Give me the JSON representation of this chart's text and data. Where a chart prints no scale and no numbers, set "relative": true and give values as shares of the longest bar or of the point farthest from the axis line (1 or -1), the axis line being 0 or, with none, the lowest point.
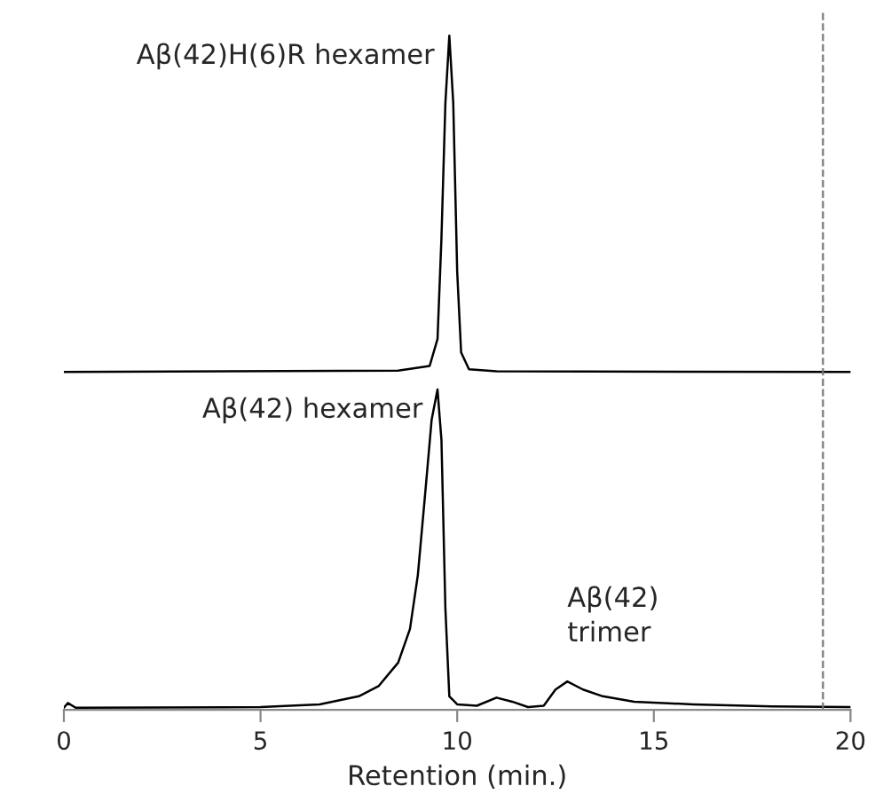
{
  "chart_data": {
    "type": "line",
    "relative": true,
    "xlabel": "Retention (min.)",
    "xlim": [
      0,
      20
    ],
    "xticks": [
      0,
      5,
      10,
      15,
      20
    ],
    "grid": false,
    "legend": false,
    "marker": "none",
    "line_style": "solid",
    "series": [
      {
        "color": "#000000",
        "x": [
          0,
          8.5,
          9.3,
          9.5,
          9.6,
          9.7,
          9.8,
          9.9,
          10.0,
          10.1,
          10.3,
          11,
          20
        ],
        "values": [
          0.501,
          0.503,
          0.51,
          0.55,
          0.7,
          0.9,
          1.0,
          0.9,
          0.65,
          0.53,
          0.505,
          0.502,
          0.501
        ]
      },
      {
        "color": "#000000",
        "x": [
          0,
          0.1,
          0.3,
          5,
          6.5,
          7.5,
          8.0,
          8.5,
          8.8,
          9.0,
          9.2,
          9.35,
          9.5,
          9.6,
          9.7,
          9.8,
          10.0,
          10.5,
          11.0,
          11.4,
          11.8,
          12.2,
          12.5,
          12.8,
          13.2,
          13.7,
          14.5,
          16,
          18,
          20
        ],
        "values": [
          0.003,
          0.01,
          0.003,
          0.004,
          0.008,
          0.02,
          0.035,
          0.07,
          0.12,
          0.2,
          0.33,
          0.43,
          0.475,
          0.4,
          0.15,
          0.02,
          0.008,
          0.006,
          0.018,
          0.012,
          0.004,
          0.006,
          0.03,
          0.042,
          0.03,
          0.02,
          0.012,
          0.008,
          0.005,
          0.004
        ]
      }
    ],
    "ref_lines": [
      {
        "axis": "x",
        "value": 19.3,
        "color": "#777777",
        "line_style": "dashed"
      }
    ],
    "annotations": [
      {
        "text": "Aβ(42)H(6)R hexamer",
        "x": 9.8,
        "y": 1.0
      },
      {
        "text": "Aβ(42) hexamer",
        "x": 9.5,
        "y": 0.475
      },
      {
        "text": "Aβ(42)\ntrimer",
        "x": 12.8,
        "y": 0.042
      }
    ]
  }
}
